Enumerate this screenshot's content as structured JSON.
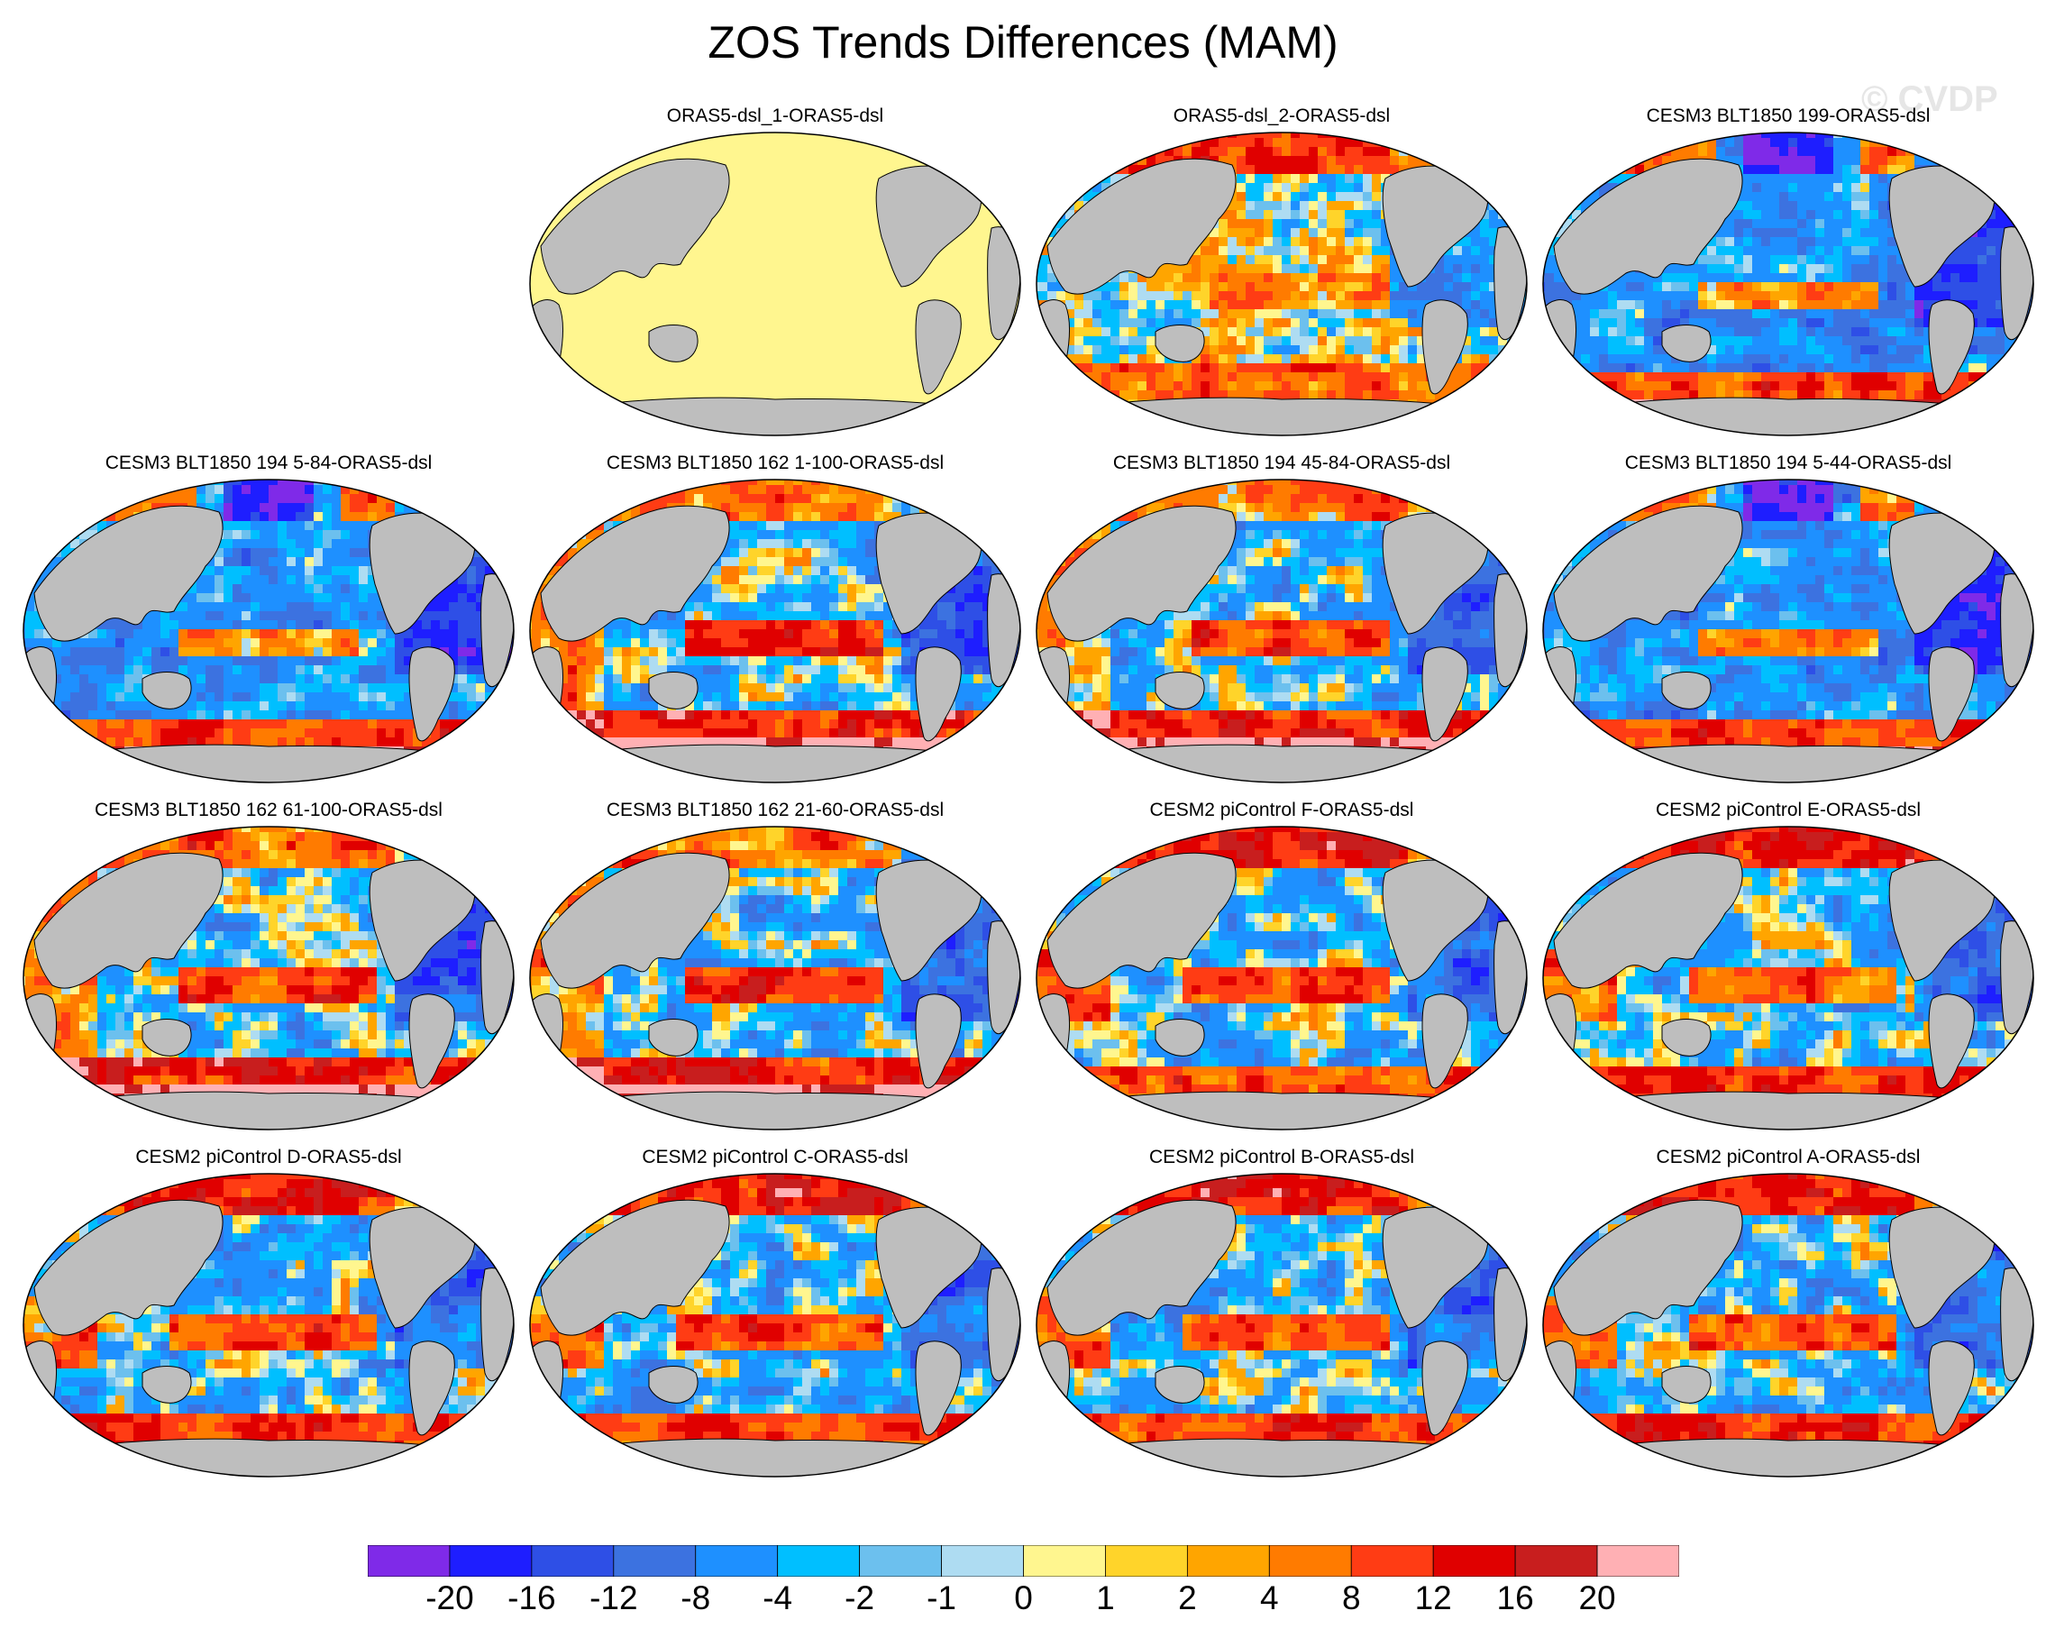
{
  "title": "ZOS Trends Differences (MAM)",
  "watermark": "© CVDP",
  "colors": {
    "land": "#bebebe",
    "uniform_zero": "#fff68f",
    "coast": "#000000"
  },
  "colorbar": {
    "colors": [
      "#7f2ae8",
      "#1e1eff",
      "#2e4fe6",
      "#3c72e0",
      "#1e90ff",
      "#00bfff",
      "#6cc0ee",
      "#aedcf2",
      "#fff68f",
      "#ffd42a",
      "#ffa500",
      "#ff7b00",
      "#ff3c14",
      "#e00000",
      "#c81e1e",
      "#ffb0b4"
    ],
    "labels": [
      "-20",
      "-16",
      "-12",
      "-8",
      "-4",
      "-2",
      "-1",
      "0",
      "1",
      "2",
      "4",
      "8",
      "12",
      "16",
      "20"
    ]
  },
  "panels": [
    {
      "title": "ORAS5-dsl_1-ORAS5-dsl",
      "pattern": "uniform"
    },
    {
      "title": "ORAS5-dsl_2-ORAS5-dsl",
      "pattern": "obs"
    },
    {
      "title": "CESM3 BLT1850 199-ORAS5-dsl",
      "pattern": "blt_cool"
    },
    {
      "title": "CESM3 BLT1850 194 5-84-ORAS5-dsl",
      "pattern": "blt_cool"
    },
    {
      "title": "CESM3 BLT1850 162 1-100-ORAS5-dsl",
      "pattern": "blt_warm"
    },
    {
      "title": "CESM3 BLT1850 194 45-84-ORAS5-dsl",
      "pattern": "blt_warm"
    },
    {
      "title": "CESM3 BLT1850 194 5-44-ORAS5-dsl",
      "pattern": "blt_cool"
    },
    {
      "title": "CESM3 BLT1850 162 61-100-ORAS5-dsl",
      "pattern": "blt_warm"
    },
    {
      "title": "CESM3 BLT1850 162 21-60-ORAS5-dsl",
      "pattern": "blt_warm"
    },
    {
      "title": "CESM2 piControl F-ORAS5-dsl",
      "pattern": "cesm2"
    },
    {
      "title": "CESM2 piControl E-ORAS5-dsl",
      "pattern": "cesm2"
    },
    {
      "title": "CESM2 piControl D-ORAS5-dsl",
      "pattern": "cesm2"
    },
    {
      "title": "CESM2 piControl C-ORAS5-dsl",
      "pattern": "cesm2"
    },
    {
      "title": "CESM2 piControl B-ORAS5-dsl",
      "pattern": "cesm2"
    },
    {
      "title": "CESM2 piControl A-ORAS5-dsl",
      "pattern": "cesm2"
    }
  ]
}
